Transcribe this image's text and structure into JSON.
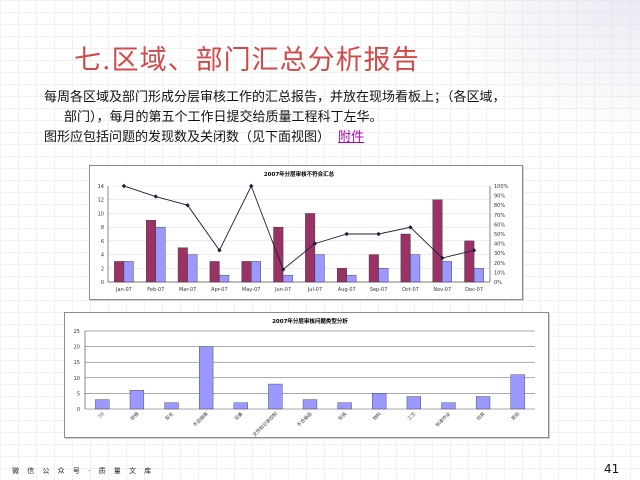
{
  "slide": {
    "title": "七.区域、部门汇总分析报告",
    "line1": "每周各区域及部门形成分层审核工作的汇总报告，并放在现场看板上；（各区域，",
    "line2": "部门），每月的第五个工作日提交给质量工程科丁左华。",
    "line3": "图形应包括问题的发现数及关闭数（见下面视图）",
    "attachment_link": "附件",
    "footer_text": "微 信 公 众 号 · 质 量 文 库",
    "page_number": "41"
  },
  "chart_data": [
    {
      "type": "bar",
      "title": "2007年分层审核不符合汇总",
      "categories": [
        "Jan-07",
        "Feb-07",
        "Mar-07",
        "Apr-07",
        "May-07",
        "Jun-07",
        "Jul-07",
        "Aug-07",
        "Sep-07",
        "Oct-07",
        "Nov-07",
        "Dec-07"
      ],
      "series": [
        {
          "values": [
            3,
            9,
            5,
            3,
            3,
            8,
            10,
            2,
            4,
            7,
            12,
            6
          ]
        },
        {
          "values": [
            3,
            8,
            4,
            1,
            3,
            1,
            4,
            1,
            2,
            4,
            3,
            2
          ]
        }
      ],
      "line_series": {
        "axis": "right",
        "values": [
          100,
          89,
          80,
          33,
          100,
          13,
          40,
          50,
          50,
          57,
          25,
          33
        ]
      },
      "y_left_ticks": [
        "0",
        "2",
        "4",
        "6",
        "8",
        "10",
        "12",
        "14"
      ],
      "ylim": [
        0,
        14
      ],
      "y_right_ticks": [
        "0%",
        "10%",
        "20%",
        "30%",
        "40%",
        "50%",
        "60%",
        "70%",
        "80%",
        "90%",
        "100%"
      ],
      "y_right_lim": [
        0,
        100
      ],
      "colors": {
        "bar1": "#993366",
        "bar2": "#9999ff",
        "line": "#1f1f3a"
      }
    },
    {
      "type": "bar",
      "title": "2007年分层审核问题类型分析",
      "categories": [
        "5S",
        "防错",
        "安全",
        "不良隔离",
        "设备",
        "文件和记录控制",
        "不合格品",
        "包装",
        "物料",
        "工艺",
        "标准作业",
        "检具",
        "其他"
      ],
      "values": [
        3,
        6,
        2,
        20,
        2,
        8,
        3,
        2,
        5,
        4,
        2,
        4,
        11
      ],
      "y_ticks": [
        "0",
        "5",
        "10",
        "15",
        "20",
        "25"
      ],
      "ylim": [
        0,
        25
      ],
      "colors": {
        "bar": "#9999ff"
      }
    }
  ]
}
